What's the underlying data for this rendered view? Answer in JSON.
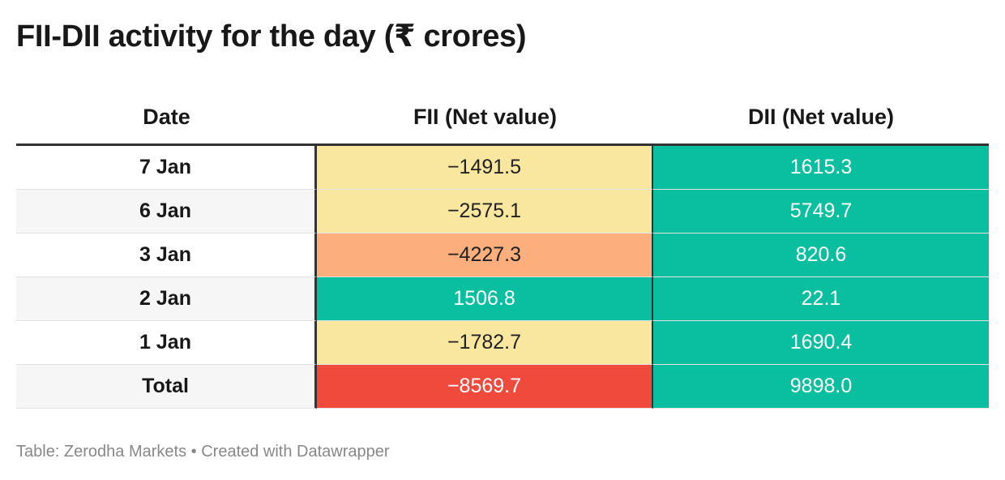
{
  "title": "FII-DII activity for the day (₹ crores)",
  "footer": "Table: Zerodha Markets • Created with Datawrapper",
  "chart_data": {
    "type": "table",
    "title": "FII-DII activity for the day (₹ crores)",
    "columns": [
      "Date",
      "FII (Net value)",
      "DII (Net value)"
    ],
    "rows": [
      {
        "date": "7 Jan",
        "fii": "−1491.5",
        "dii": "1615.3"
      },
      {
        "date": "6 Jan",
        "fii": "−2575.1",
        "dii": "5749.7"
      },
      {
        "date": "3 Jan",
        "fii": "−4227.3",
        "dii": "820.6"
      },
      {
        "date": "2 Jan",
        "fii": "1506.8",
        "dii": "22.1"
      },
      {
        "date": "1 Jan",
        "fii": "−1782.7",
        "dii": "1690.4"
      },
      {
        "date": "Total",
        "fii": "−8569.7",
        "dii": "9898.0"
      }
    ],
    "fii_values": [
      -1491.5,
      -2575.1,
      -4227.3,
      1506.8,
      -1782.7,
      -8569.7
    ],
    "dii_values": [
      1615.3,
      5749.7,
      820.6,
      22.1,
      1690.4,
      9898.0
    ],
    "cell_colors": {
      "fii": [
        "#f9e79f",
        "#f9e79f",
        "#fcae7c",
        "#0abf9f",
        "#f9e79f",
        "#ef4a3c"
      ],
      "dii": [
        "#0abf9f",
        "#0abf9f",
        "#0abf9f",
        "#0abf9f",
        "#0abf9f",
        "#0abf9f"
      ]
    },
    "row_backgrounds": [
      "#ffffff",
      "#f6f6f6",
      "#ffffff",
      "#f6f6f6",
      "#ffffff",
      "#f6f6f6"
    ]
  }
}
